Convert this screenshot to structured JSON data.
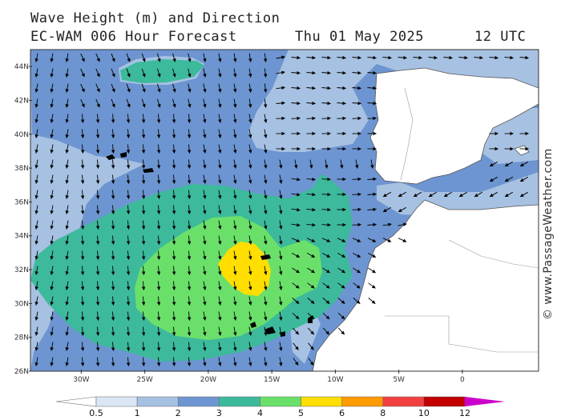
{
  "header": {
    "line1": "Wave Height (m) and Direction",
    "model": "EC-WAM 006 Hour Forecast",
    "date": "Thu 01 May 2025",
    "time": "12 UTC"
  },
  "credit": "© www.PassageWeather.com",
  "map": {
    "lon_range": [
      -34,
      6
    ],
    "lat_range": [
      26,
      45
    ],
    "lat_ticks": [
      "26N",
      "28N",
      "30N",
      "32N",
      "34N",
      "36N",
      "38N",
      "40N",
      "42N",
      "44N"
    ],
    "lon_ticks": [
      "30W",
      "25W",
      "20W",
      "15W",
      "10W",
      "5W",
      "0"
    ]
  },
  "legend": {
    "labels": [
      "0.5",
      "1",
      "2",
      "3",
      "4",
      "5",
      "6",
      "8",
      "10",
      "12"
    ],
    "colors": [
      "#dbe6f5",
      "#a7c1e2",
      "#6d95d1",
      "#3dba9c",
      "#6ae06a",
      "#ffde00",
      "#ff9a00",
      "#f24040",
      "#c20000",
      "#cc00cc"
    ]
  },
  "colors": {
    "land": "#ffffff",
    "sea_base": "#6d95d1",
    "arrow": "#000000"
  }
}
